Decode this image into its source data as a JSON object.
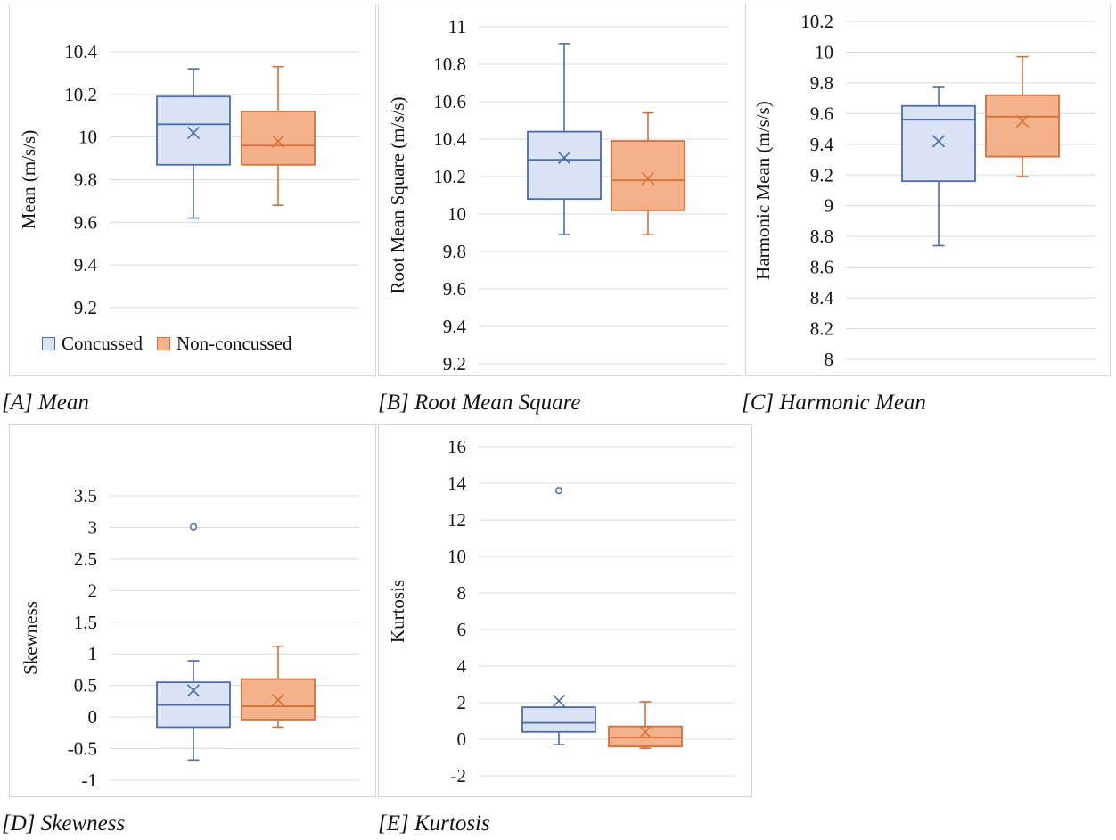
{
  "legend": {
    "concussed": "Concussed",
    "non_concussed": "Non-concussed"
  },
  "colors": {
    "concussed_fill": "#dae3f3",
    "concussed_stroke": "#4a6cb2",
    "non_concussed_fill": "#f4b28c",
    "non_concussed_stroke": "#d86f34",
    "grid": "#d9d9d9"
  },
  "captions": {
    "a": "[A] Mean",
    "b": "[B] Root Mean Square",
    "c": "[C] Harmonic Mean",
    "d": "[D] Skewness",
    "e": "[E] Kurtosis"
  },
  "chart_data": [
    {
      "type": "box",
      "title": "",
      "ylabel": "Mean (m/s/s)",
      "ylim": [
        9.2,
        10.4
      ],
      "yticks": [
        "9.2",
        "9.4",
        "9.6",
        "9.8",
        "10",
        "10.2",
        "10.4"
      ],
      "legend_position": "bottom-left",
      "grid": true,
      "series": [
        {
          "name": "Concussed",
          "min": 9.62,
          "q1": 9.87,
          "median": 10.06,
          "q3": 10.19,
          "max": 10.32,
          "mean": 10.02,
          "outliers": []
        },
        {
          "name": "Non-concussed",
          "min": 9.68,
          "q1": 9.87,
          "median": 9.96,
          "q3": 10.12,
          "max": 10.33,
          "mean": 9.98,
          "outliers": []
        }
      ]
    },
    {
      "type": "box",
      "title": "",
      "ylabel": "Root Mean Square (m/s/s)",
      "ylim": [
        9.2,
        11
      ],
      "yticks": [
        "9.2",
        "9.4",
        "9.6",
        "9.8",
        "10",
        "10.2",
        "10.4",
        "10.6",
        "10.8",
        "11"
      ],
      "grid": true,
      "series": [
        {
          "name": "Concussed",
          "min": 9.89,
          "q1": 10.08,
          "median": 10.29,
          "q3": 10.44,
          "max": 10.91,
          "mean": 10.3,
          "outliers": []
        },
        {
          "name": "Non-concussed",
          "min": 9.89,
          "q1": 10.02,
          "median": 10.18,
          "q3": 10.39,
          "max": 10.54,
          "mean": 10.19,
          "outliers": []
        }
      ]
    },
    {
      "type": "box",
      "title": "",
      "ylabel": "Harmonic Mean (m/s/s)",
      "ylim": [
        8,
        10.2
      ],
      "yticks": [
        "8",
        "8.2",
        "8.4",
        "8.6",
        "8.8",
        "9",
        "9.2",
        "9.4",
        "9.6",
        "9.8",
        "10",
        "10.2"
      ],
      "grid": true,
      "series": [
        {
          "name": "Concussed",
          "min": 8.74,
          "q1": 9.16,
          "median": 9.56,
          "q3": 9.65,
          "max": 9.77,
          "mean": 9.42,
          "outliers": []
        },
        {
          "name": "Non-concussed",
          "min": 9.19,
          "q1": 9.32,
          "median": 9.58,
          "q3": 9.72,
          "max": 9.97,
          "mean": 9.55,
          "outliers": []
        }
      ]
    },
    {
      "type": "box",
      "title": "",
      "ylabel": "Skewness",
      "ylim": [
        -1,
        3.5
      ],
      "yticks": [
        "-1",
        "-0.5",
        "0",
        "0.5",
        "1",
        "1.5",
        "2",
        "2.5",
        "3",
        "3.5"
      ],
      "grid": true,
      "series": [
        {
          "name": "Concussed",
          "min": -0.68,
          "q1": -0.16,
          "median": 0.19,
          "q3": 0.55,
          "max": 0.89,
          "mean": 0.42,
          "outliers": [
            3.01
          ]
        },
        {
          "name": "Non-concussed",
          "min": -0.16,
          "q1": -0.04,
          "median": 0.17,
          "q3": 0.6,
          "max": 1.12,
          "mean": 0.27,
          "outliers": []
        }
      ]
    },
    {
      "type": "box",
      "title": "",
      "ylabel": "Kurtosis",
      "ylim": [
        -2,
        16
      ],
      "yticks": [
        "-2",
        "0",
        "2",
        "4",
        "6",
        "8",
        "10",
        "12",
        "14",
        "16"
      ],
      "grid": true,
      "series": [
        {
          "name": "Concussed",
          "min": -0.3,
          "q1": 0.4,
          "median": 0.9,
          "q3": 1.75,
          "max": 1.75,
          "mean": 2.1,
          "outliers": [
            13.6
          ]
        },
        {
          "name": "Non-concussed",
          "min": -0.5,
          "q1": -0.4,
          "median": 0.1,
          "q3": 0.7,
          "max": 2.05,
          "mean": 0.4,
          "outliers": []
        }
      ]
    }
  ]
}
